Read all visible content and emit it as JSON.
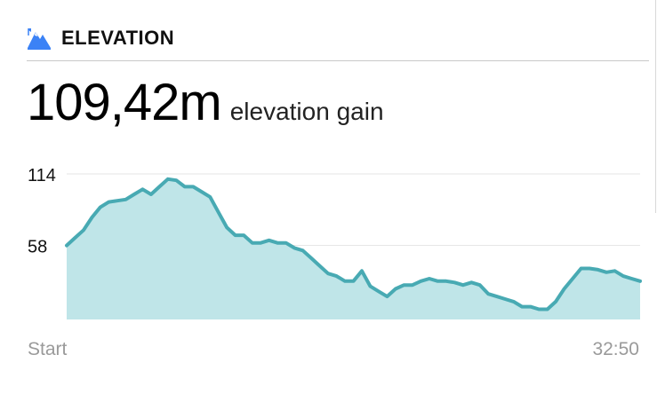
{
  "header": {
    "icon": "mountain-icon",
    "title": "ELEVATION"
  },
  "summary": {
    "value": "109,42m",
    "caption": "elevation gain"
  },
  "colors": {
    "line": "#48aab3",
    "fill": "#bfe5e8",
    "grid": "#e6e6e6",
    "icon": "#3b82f6"
  },
  "chart_data": {
    "type": "area",
    "x_start_label": "Start",
    "x_end_label": "32:50",
    "y_ticks": [
      58,
      114
    ],
    "ylim": [
      0,
      114
    ],
    "grid": true,
    "values": [
      58,
      64,
      70,
      80,
      88,
      92,
      93,
      94,
      98,
      102,
      98,
      104,
      110,
      109,
      104,
      104,
      100,
      96,
      84,
      72,
      66,
      66,
      60,
      60,
      62,
      60,
      60,
      56,
      54,
      48,
      42,
      36,
      34,
      30,
      30,
      38,
      26,
      22,
      18,
      24,
      27,
      27,
      30,
      32,
      30,
      30,
      29,
      27,
      29,
      27,
      20,
      18,
      16,
      14,
      10,
      10,
      8,
      8,
      14,
      24,
      32,
      40,
      40,
      39,
      37,
      38,
      34,
      32,
      30
    ]
  }
}
